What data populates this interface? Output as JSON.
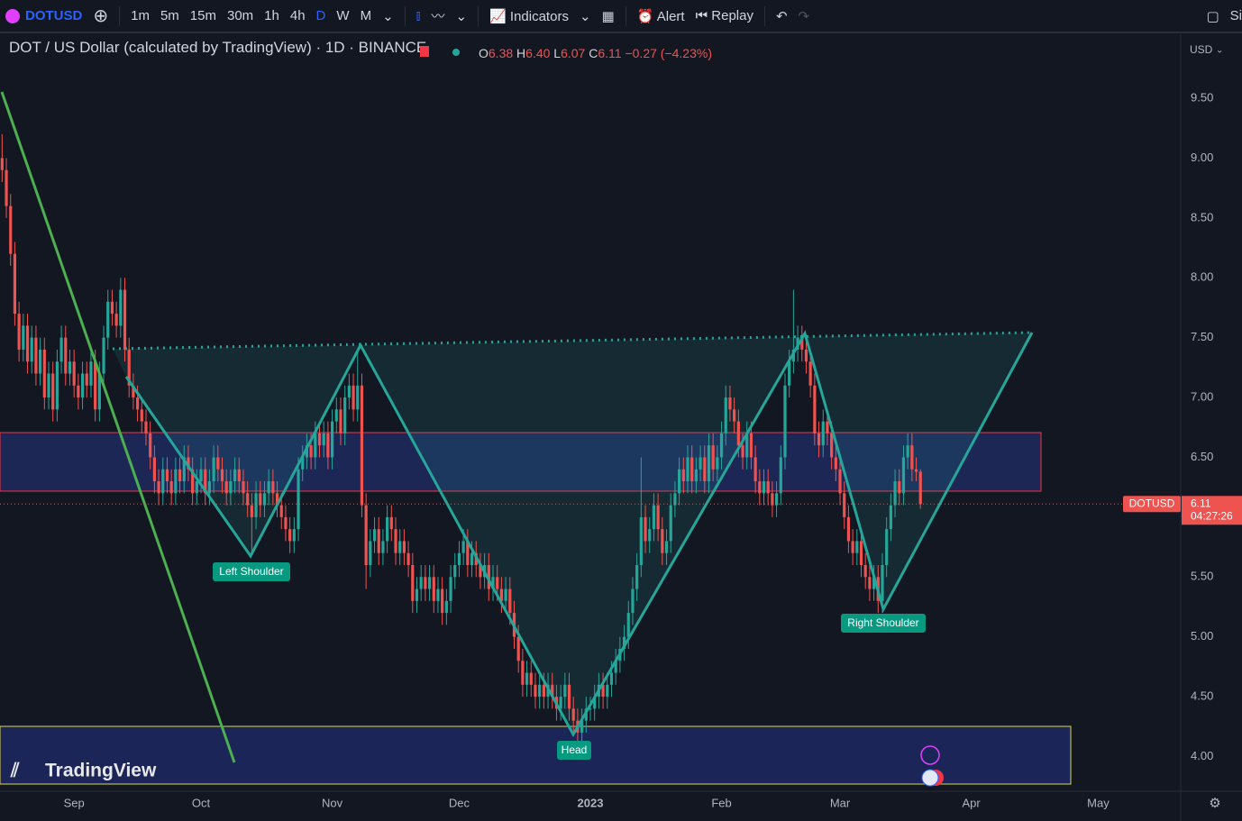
{
  "toolbar": {
    "symbol": "DOTUSD",
    "intervals": [
      "1m",
      "5m",
      "15m",
      "30m",
      "1h",
      "4h",
      "D",
      "W",
      "M"
    ],
    "indicators": "Indicators",
    "alert": "Alert",
    "replay": "Replay",
    "cut": "Si"
  },
  "header": {
    "o_label": "O",
    "o": "6.38",
    "h_label": "H",
    "h": "6.40",
    "l_label": "L",
    "l": "6.07",
    "c_label": "C",
    "c": "6.11",
    "change": "−0.27 (−4.23%)"
  },
  "currency": "USD",
  "price_tag": {
    "symbol": "DOTUSD",
    "countdown": "04:27:26"
  },
  "logo": "TradingView",
  "chart_data": {
    "type": "candlestick",
    "title": "DOT / US Dollar (calculated by TradingView) · 1D · BINANCE",
    "categories": [
      null,
      null,
      null,
      null,
      null,
      null,
      null,
      null,
      null,
      null,
      null,
      null,
      null,
      null,
      null,
      null,
      null,
      "Sep",
      null,
      null,
      null,
      null,
      null,
      null,
      null,
      null,
      null,
      null,
      null,
      null,
      null,
      null,
      null,
      null,
      null,
      null,
      null,
      null,
      null,
      null,
      null,
      null,
      null,
      null,
      null,
      null,
      null,
      "Oct",
      null,
      null,
      null,
      null,
      null,
      null,
      null,
      null,
      null,
      null,
      null,
      null,
      null,
      null,
      null,
      null,
      null,
      null,
      null,
      null,
      null,
      null,
      null,
      null,
      null,
      null,
      null,
      null,
      null,
      null,
      "Nov",
      null,
      null,
      null,
      null,
      null,
      null,
      null,
      null,
      null,
      null,
      null,
      null,
      null,
      null,
      null,
      null,
      null,
      null,
      null,
      null,
      null,
      null,
      null,
      null,
      null,
      null,
      null,
      null,
      null,
      "Dec",
      null,
      null,
      null,
      null,
      null,
      null,
      null,
      null,
      null,
      null,
      null,
      null,
      null,
      null,
      null,
      null,
      null,
      null,
      null,
      null,
      null,
      null,
      null,
      null,
      null,
      null,
      null,
      null,
      null,
      null,
      "2023",
      null,
      null,
      null,
      null,
      null,
      null,
      null,
      null,
      null,
      null,
      null,
      null,
      null,
      null,
      null,
      null,
      null,
      null,
      null,
      null,
      null,
      null,
      null,
      null,
      null,
      null,
      null,
      null,
      null,
      null,
      "Feb",
      null,
      null,
      null,
      null,
      null,
      null,
      null,
      null,
      null,
      null,
      null,
      null,
      null,
      null,
      null,
      null,
      null,
      null,
      null,
      null,
      null,
      null,
      null,
      null,
      null,
      null,
      null,
      "Mar",
      null,
      null,
      null,
      null,
      null,
      null,
      null,
      null,
      null,
      null,
      null,
      null,
      null,
      null,
      null,
      null,
      null,
      null,
      null,
      null,
      null,
      null,
      null,
      null,
      null,
      null,
      null,
      null,
      null,
      null,
      "Apr",
      null,
      null,
      null,
      null,
      null,
      null,
      null,
      null,
      null,
      null,
      null,
      null,
      null,
      null,
      null,
      null,
      null,
      null,
      null,
      null,
      null,
      null,
      null,
      null,
      null,
      null,
      null,
      null,
      null,
      "May",
      null,
      null,
      null,
      null,
      null,
      null,
      null,
      null,
      null,
      null,
      null,
      null,
      null,
      null,
      null,
      null,
      null,
      null,
      null
    ],
    "open": [
      9.0,
      8.9,
      8.6,
      8.2,
      7.7,
      7.4,
      7.6,
      7.3,
      7.5,
      7.2,
      7.4,
      7.0,
      7.2,
      6.9,
      7.3,
      7.5,
      7.2,
      7.3,
      7.1,
      7.0,
      7.2,
      7.1,
      7.3,
      6.9,
      7.2,
      7.5,
      7.8,
      7.7,
      7.6,
      7.9,
      7.4,
      7.1,
      7.0,
      6.9,
      6.8,
      6.7,
      6.5,
      6.3,
      6.2,
      6.4,
      6.3,
      6.2,
      6.4,
      6.3,
      6.5,
      6.4,
      6.2,
      6.3,
      6.4,
      6.2,
      6.3,
      6.5,
      6.4,
      6.3,
      6.2,
      6.3,
      6.4,
      6.3,
      6.2,
      6.1,
      6.0,
      6.2,
      6.1,
      6.2,
      6.3,
      6.2,
      6.1,
      6.0,
      5.9,
      5.8,
      5.9,
      6.4,
      6.5,
      6.6,
      6.5,
      6.7,
      6.6,
      6.7,
      6.5,
      6.8,
      6.9,
      6.7,
      7.0,
      7.1,
      6.9,
      7.1,
      6.1,
      5.6,
      5.8,
      5.9,
      5.7,
      5.8,
      6.0,
      5.9,
      5.7,
      5.8,
      5.7,
      5.6,
      5.3,
      5.4,
      5.5,
      5.4,
      5.5,
      5.3,
      5.4,
      5.2,
      5.3,
      5.5,
      5.6,
      5.7,
      5.8,
      5.6,
      5.7,
      5.6,
      5.5,
      5.6,
      5.4,
      5.5,
      5.4,
      5.3,
      5.4,
      5.2,
      5.0,
      4.8,
      4.6,
      4.7,
      4.6,
      4.5,
      4.6,
      4.5,
      4.6,
      4.5,
      4.4,
      4.5,
      4.6,
      4.4,
      4.3,
      4.2,
      4.3,
      4.4,
      4.4,
      4.5,
      4.6,
      4.5,
      4.6,
      4.7,
      4.8,
      4.9,
      5.0,
      5.2,
      5.4,
      5.6,
      6.0,
      5.8,
      5.9,
      6.1,
      5.9,
      5.7,
      5.8,
      6.1,
      6.2,
      6.4,
      6.3,
      6.5,
      6.3,
      6.4,
      6.5,
      6.3,
      6.6,
      6.4,
      6.5,
      6.7,
      7.0,
      6.9,
      6.8,
      6.6,
      6.5,
      6.7,
      6.5,
      6.3,
      6.2,
      6.3,
      6.2,
      6.1,
      6.2,
      6.5,
      7.1,
      7.3,
      7.4,
      7.5,
      7.4,
      7.3,
      7.1,
      6.7,
      6.6,
      6.8,
      6.7,
      6.5,
      6.4,
      6.2,
      6.0,
      5.8,
      5.7,
      5.8,
      5.6,
      5.5,
      5.4,
      5.5,
      5.3,
      5.6,
      5.9,
      6.1,
      6.3,
      6.2,
      6.5,
      6.6,
      6.4,
      6.38,
      null,
      null,
      null,
      null,
      null,
      null,
      null,
      null,
      null,
      null,
      null,
      null,
      null,
      null,
      null,
      null,
      null,
      null,
      null,
      null,
      null,
      null,
      null,
      null,
      null,
      null,
      null,
      null,
      null,
      null,
      null,
      null,
      null,
      null,
      null,
      null,
      null,
      null,
      null,
      null,
      null,
      null,
      null,
      null,
      null,
      null,
      null,
      null,
      null,
      null,
      null,
      null,
      null,
      null,
      null,
      null,
      null,
      null,
      null,
      null,
      null
    ],
    "high": [
      9.2,
      9.0,
      8.7,
      8.3,
      7.8,
      7.7,
      7.7,
      7.6,
      7.6,
      7.5,
      7.5,
      7.3,
      7.3,
      7.4,
      7.6,
      7.6,
      7.4,
      7.4,
      7.2,
      7.3,
      7.3,
      7.4,
      7.4,
      7.3,
      7.6,
      7.9,
      7.9,
      7.8,
      8.0,
      8.0,
      7.5,
      7.2,
      7.1,
      7.0,
      6.9,
      6.8,
      6.6,
      6.4,
      6.5,
      6.5,
      6.4,
      6.5,
      6.5,
      6.6,
      6.6,
      6.5,
      6.4,
      6.5,
      6.5,
      6.4,
      6.6,
      6.6,
      6.5,
      6.4,
      6.4,
      6.5,
      6.5,
      6.4,
      6.3,
      6.2,
      6.3,
      6.3,
      6.3,
      6.4,
      6.4,
      6.3,
      6.2,
      6.1,
      6.0,
      6.0,
      6.5,
      6.6,
      6.7,
      6.7,
      6.8,
      6.8,
      6.8,
      6.8,
      6.9,
      7.0,
      7.0,
      7.1,
      7.2,
      7.2,
      7.4,
      7.2,
      6.2,
      5.9,
      6.0,
      6.0,
      5.9,
      6.1,
      6.1,
      6.0,
      5.9,
      5.9,
      5.8,
      5.7,
      5.5,
      5.6,
      5.6,
      5.6,
      5.6,
      5.5,
      5.5,
      5.4,
      5.6,
      5.7,
      5.8,
      5.9,
      5.9,
      5.8,
      5.8,
      5.7,
      5.7,
      5.7,
      5.6,
      5.6,
      5.5,
      5.5,
      5.5,
      5.3,
      5.1,
      4.9,
      4.8,
      4.8,
      4.7,
      4.7,
      4.7,
      4.7,
      4.7,
      4.6,
      4.6,
      4.7,
      4.7,
      4.5,
      4.4,
      4.4,
      4.5,
      4.5,
      4.6,
      4.7,
      4.7,
      4.7,
      4.8,
      4.9,
      5.0,
      5.1,
      5.3,
      5.5,
      5.7,
      6.5,
      6.1,
      6.0,
      6.2,
      6.2,
      6.0,
      5.9,
      6.2,
      6.3,
      6.5,
      6.5,
      6.6,
      6.6,
      6.5,
      6.6,
      6.6,
      6.7,
      6.7,
      6.6,
      6.8,
      7.1,
      7.1,
      7.0,
      6.9,
      6.7,
      6.8,
      6.8,
      6.6,
      6.4,
      6.4,
      6.4,
      6.3,
      6.3,
      6.6,
      7.2,
      7.4,
      7.9,
      7.6,
      7.6,
      7.5,
      7.4,
      7.2,
      6.8,
      6.9,
      6.9,
      6.8,
      6.6,
      6.5,
      6.3,
      6.1,
      5.9,
      5.9,
      5.9,
      5.7,
      5.6,
      5.6,
      5.6,
      5.7,
      6.0,
      6.2,
      6.4,
      6.4,
      6.6,
      6.7,
      6.7,
      6.5,
      6.4,
      null,
      null,
      null,
      null,
      null,
      null,
      null,
      null,
      null,
      null,
      null,
      null,
      null,
      null,
      null,
      null,
      null,
      null,
      null,
      null,
      null,
      null,
      null,
      null,
      null,
      null,
      null,
      null,
      null,
      null,
      null,
      null,
      null,
      null,
      null,
      null,
      null,
      null,
      null,
      null,
      null,
      null,
      null,
      null,
      null,
      null,
      null,
      null,
      null,
      null,
      null,
      null,
      null,
      null,
      null,
      null,
      null,
      null,
      null,
      null,
      null
    ],
    "low": [
      8.8,
      8.5,
      8.1,
      7.6,
      7.3,
      7.3,
      7.2,
      7.2,
      7.1,
      7.1,
      6.9,
      6.9,
      6.8,
      6.8,
      7.2,
      7.1,
      7.1,
      7.0,
      6.9,
      6.9,
      7.0,
      7.0,
      6.8,
      6.8,
      7.1,
      7.4,
      7.6,
      7.5,
      7.5,
      7.3,
      7.0,
      6.9,
      6.8,
      6.7,
      6.6,
      6.4,
      6.2,
      6.1,
      6.1,
      6.2,
      6.1,
      6.1,
      6.2,
      6.2,
      6.3,
      6.1,
      6.1,
      6.2,
      6.1,
      6.1,
      6.2,
      6.3,
      6.2,
      6.1,
      6.1,
      6.2,
      6.2,
      6.1,
      6.0,
      5.7,
      5.9,
      6.0,
      6.0,
      6.1,
      6.1,
      6.0,
      5.9,
      5.8,
      5.7,
      5.7,
      5.8,
      6.3,
      6.4,
      6.4,
      6.4,
      6.5,
      6.5,
      6.4,
      6.4,
      6.7,
      6.6,
      6.6,
      6.9,
      6.8,
      6.8,
      6.0,
      5.4,
      5.5,
      5.7,
      5.6,
      5.6,
      5.7,
      5.8,
      5.6,
      5.6,
      5.6,
      5.5,
      5.2,
      5.2,
      5.3,
      5.3,
      5.3,
      5.2,
      5.2,
      5.1,
      5.1,
      5.2,
      5.4,
      5.5,
      5.6,
      5.5,
      5.5,
      5.5,
      5.4,
      5.4,
      5.3,
      5.3,
      5.3,
      5.2,
      5.2,
      5.1,
      4.9,
      4.7,
      4.5,
      4.5,
      4.5,
      4.4,
      4.4,
      4.4,
      4.4,
      4.4,
      4.3,
      4.3,
      4.4,
      4.3,
      4.2,
      4.1,
      4.1,
      4.2,
      4.3,
      4.3,
      4.4,
      4.4,
      4.4,
      4.5,
      4.6,
      4.7,
      4.8,
      4.9,
      5.1,
      5.3,
      5.5,
      5.7,
      5.7,
      5.8,
      5.8,
      5.6,
      5.6,
      5.7,
      6.0,
      6.1,
      6.2,
      6.2,
      6.2,
      6.2,
      6.3,
      6.2,
      6.2,
      6.3,
      6.3,
      6.4,
      6.6,
      6.8,
      6.7,
      6.5,
      6.4,
      6.4,
      6.4,
      6.2,
      6.1,
      6.1,
      6.1,
      6.0,
      6.0,
      6.1,
      6.4,
      7.0,
      7.2,
      7.3,
      7.3,
      7.2,
      7.0,
      6.6,
      6.5,
      6.5,
      6.6,
      6.4,
      6.3,
      6.1,
      5.9,
      5.7,
      5.6,
      5.6,
      5.5,
      5.4,
      5.3,
      5.3,
      5.2,
      5.2,
      5.5,
      5.8,
      6.0,
      6.1,
      6.1,
      6.4,
      6.3,
      6.3,
      6.07,
      null,
      null,
      null,
      null,
      null,
      null,
      null,
      null,
      null,
      null,
      null,
      null,
      null,
      null,
      null,
      null,
      null,
      null,
      null,
      null,
      null,
      null,
      null,
      null,
      null,
      null,
      null,
      null,
      null,
      null,
      null,
      null,
      null,
      null,
      null,
      null,
      null,
      null,
      null,
      null,
      null,
      null,
      null,
      null,
      null,
      null,
      null,
      null,
      null,
      null,
      null,
      null,
      null,
      null,
      null,
      null,
      null,
      null,
      null,
      null,
      null
    ],
    "close": [
      8.9,
      8.6,
      8.2,
      7.7,
      7.4,
      7.6,
      7.3,
      7.5,
      7.2,
      7.4,
      7.0,
      7.2,
      6.9,
      7.3,
      7.5,
      7.2,
      7.3,
      7.1,
      7.0,
      7.2,
      7.1,
      7.3,
      6.9,
      7.2,
      7.5,
      7.8,
      7.7,
      7.6,
      7.9,
      7.4,
      7.1,
      7.0,
      6.9,
      6.8,
      6.7,
      6.5,
      6.3,
      6.2,
      6.4,
      6.3,
      6.2,
      6.4,
      6.3,
      6.5,
      6.4,
      6.2,
      6.3,
      6.4,
      6.2,
      6.3,
      6.5,
      6.4,
      6.3,
      6.2,
      6.3,
      6.4,
      6.3,
      6.2,
      6.1,
      6.0,
      6.2,
      6.1,
      6.2,
      6.3,
      6.2,
      6.1,
      6.0,
      5.9,
      5.8,
      5.9,
      6.4,
      6.5,
      6.6,
      6.5,
      6.7,
      6.6,
      6.7,
      6.5,
      6.8,
      6.9,
      6.7,
      7.0,
      7.1,
      6.9,
      7.1,
      6.1,
      5.6,
      5.8,
      5.9,
      5.7,
      5.8,
      6.0,
      5.9,
      5.7,
      5.8,
      5.7,
      5.6,
      5.3,
      5.4,
      5.5,
      5.4,
      5.5,
      5.3,
      5.4,
      5.2,
      5.3,
      5.5,
      5.6,
      5.7,
      5.8,
      5.6,
      5.7,
      5.6,
      5.5,
      5.6,
      5.4,
      5.5,
      5.4,
      5.3,
      5.4,
      5.2,
      5.0,
      4.8,
      4.6,
      4.7,
      4.6,
      4.5,
      4.6,
      4.5,
      4.6,
      4.5,
      4.4,
      4.5,
      4.6,
      4.4,
      4.3,
      4.2,
      4.3,
      4.4,
      4.4,
      4.5,
      4.6,
      4.5,
      4.6,
      4.7,
      4.8,
      4.9,
      5.0,
      5.2,
      5.4,
      5.6,
      6.0,
      5.8,
      5.9,
      6.1,
      5.9,
      5.7,
      5.8,
      6.1,
      6.2,
      6.4,
      6.3,
      6.5,
      6.3,
      6.4,
      6.5,
      6.3,
      6.6,
      6.4,
      6.5,
      6.7,
      7.0,
      6.9,
      6.8,
      6.6,
      6.5,
      6.7,
      6.5,
      6.3,
      6.2,
      6.3,
      6.2,
      6.1,
      6.2,
      6.5,
      7.1,
      7.3,
      7.4,
      7.5,
      7.4,
      7.3,
      7.1,
      6.7,
      6.6,
      6.8,
      6.7,
      6.5,
      6.4,
      6.2,
      6.0,
      5.8,
      5.7,
      5.8,
      5.6,
      5.5,
      5.4,
      5.5,
      5.3,
      5.6,
      5.9,
      6.1,
      6.3,
      6.2,
      6.5,
      6.6,
      6.4,
      6.38,
      6.11,
      null,
      null,
      null,
      null,
      null,
      null,
      null,
      null,
      null,
      null,
      null,
      null,
      null,
      null,
      null,
      null,
      null,
      null,
      null,
      null,
      null,
      null,
      null,
      null,
      null,
      null,
      null,
      null,
      null,
      null,
      null,
      null,
      null,
      null,
      null,
      null,
      null,
      null,
      null,
      null,
      null,
      null,
      null,
      null,
      null,
      null,
      null,
      null,
      null,
      null,
      null,
      null,
      null,
      null,
      null,
      null,
      null,
      null,
      null,
      null,
      null
    ],
    "up_color": "#26a69a",
    "down_color": "#ef5350",
    "ylim": [
      3.71,
      10.02
    ],
    "yticks": [
      {
        "value": 4,
        "label": "4.00"
      },
      {
        "value": 4.5,
        "label": "4.50"
      },
      {
        "value": 5,
        "label": "5.00"
      },
      {
        "value": 5.5,
        "label": "5.50"
      },
      {
        "value": 6,
        "label": "6.00"
      },
      {
        "value": 6.5,
        "label": "6.50"
      },
      {
        "value": 7,
        "label": "7.00"
      },
      {
        "value": 7.5,
        "label": "7.50"
      },
      {
        "value": 8,
        "label": "8.00"
      },
      {
        "value": 8.5,
        "label": "8.50"
      },
      {
        "value": 9,
        "label": "9.00"
      },
      {
        "value": 9.5,
        "label": "9.50"
      }
    ],
    "grid": false,
    "annotations": [
      "Left Shoulder",
      "Head",
      "Right Shoulder"
    ]
  }
}
